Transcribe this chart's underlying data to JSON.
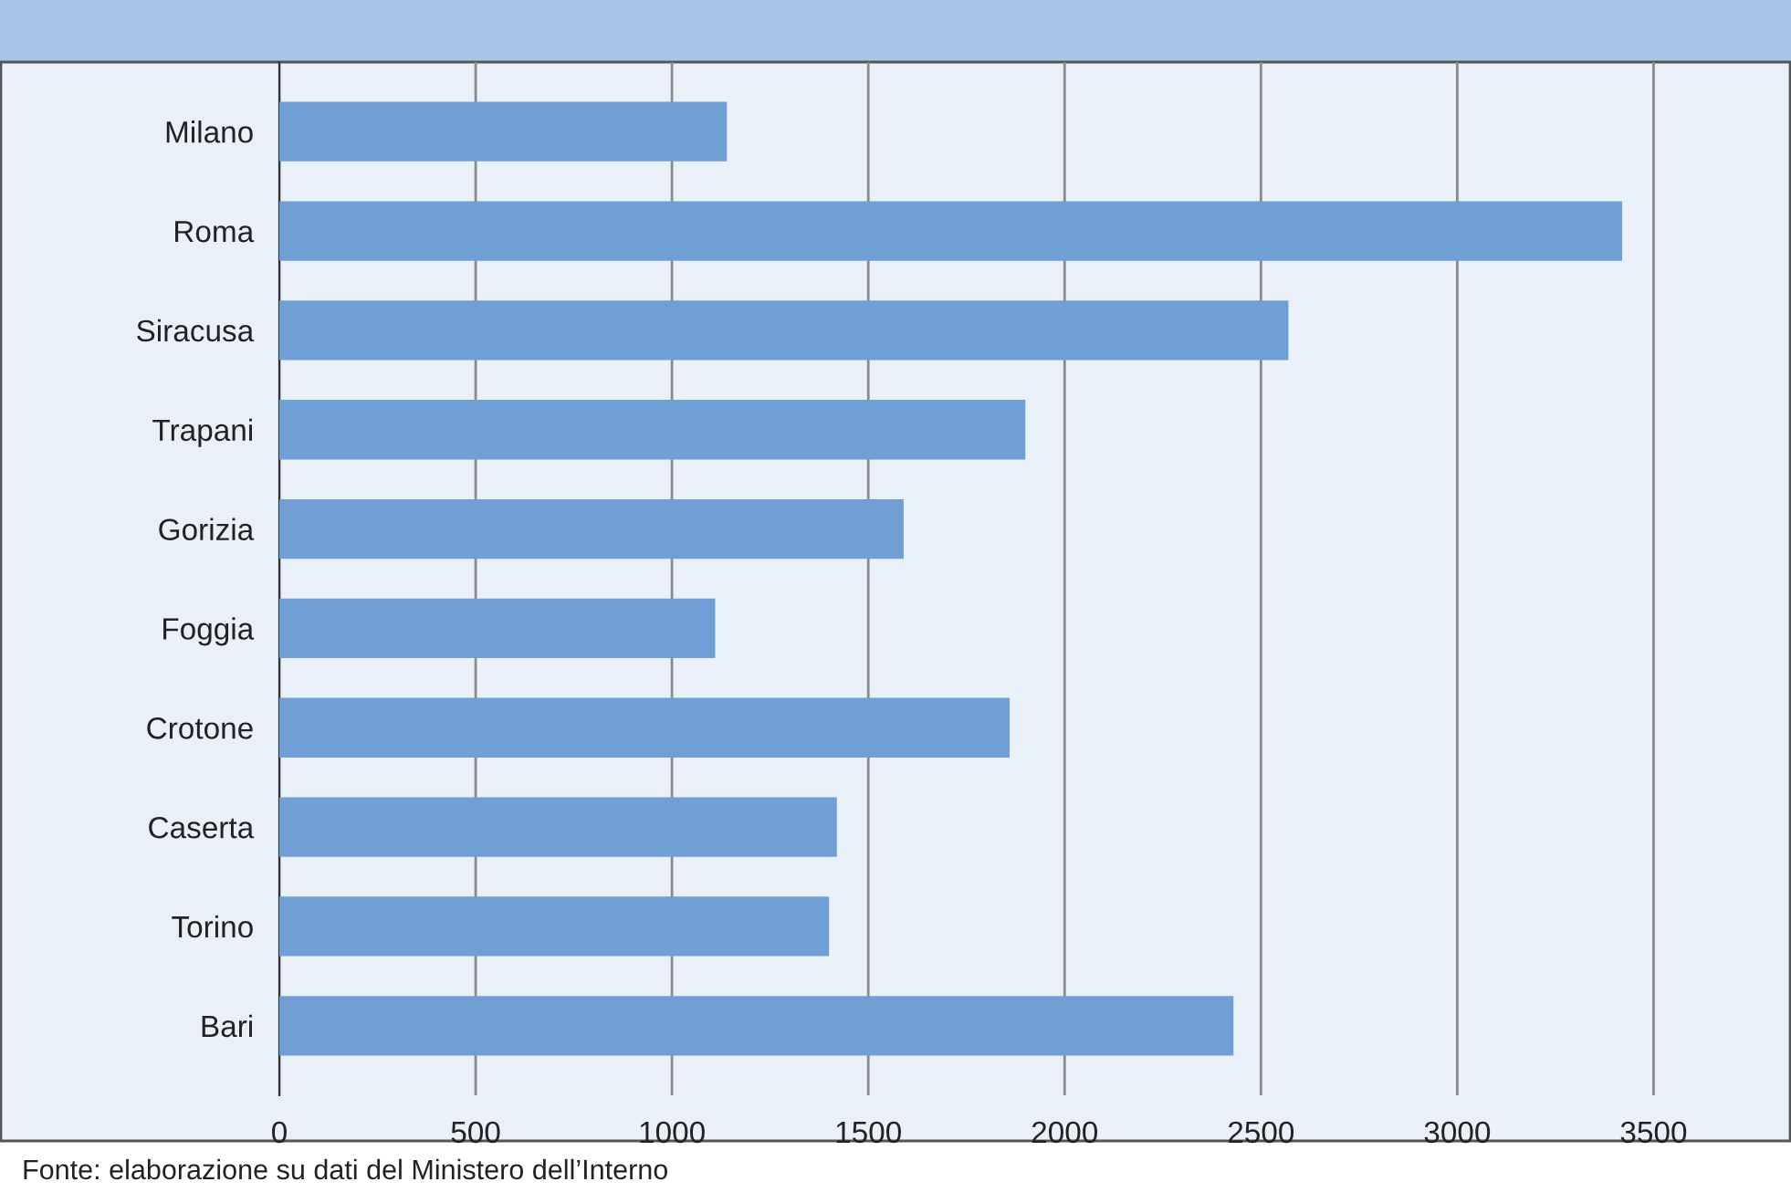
{
  "chart_data": {
    "type": "bar",
    "orientation": "horizontal",
    "categories": [
      "Milano",
      "Roma",
      "Siracusa",
      "Trapani",
      "Gorizia",
      "Foggia",
      "Crotone",
      "Caserta",
      "Torino",
      "Bari"
    ],
    "values": [
      1140,
      3420,
      2570,
      1900,
      1590,
      1110,
      1860,
      1420,
      1400,
      2430
    ],
    "color": "#6f9fd4",
    "xlim": [
      0,
      3850
    ],
    "xticks": [
      0,
      500,
      1000,
      1500,
      2000,
      2500,
      3000,
      3500
    ],
    "grid": "x",
    "annotations": [
      "Fonte: elaborazione su dati del Ministero dell’Interno"
    ]
  }
}
